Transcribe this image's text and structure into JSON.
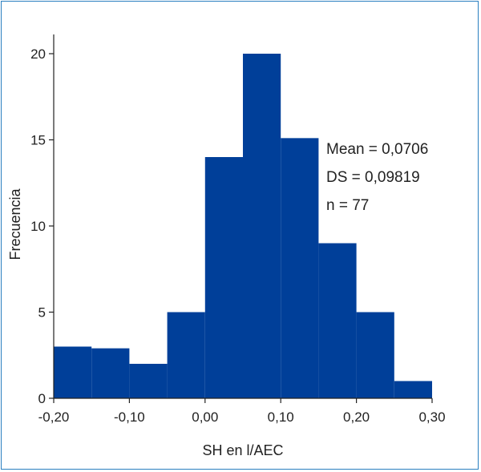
{
  "chart_data": {
    "type": "bar",
    "subtype": "histogram",
    "bin_edges": [
      -0.2,
      -0.15,
      -0.1,
      -0.05,
      0.0,
      0.05,
      0.1,
      0.15,
      0.2,
      0.25,
      0.3
    ],
    "values": [
      3,
      2.9,
      2,
      5,
      14,
      20,
      15.1,
      9,
      5,
      1
    ],
    "xlabel": "SH en l/AEC",
    "ylabel": "Frecuencia",
    "xlim": [
      -0.2,
      0.3
    ],
    "ylim": [
      0,
      20
    ],
    "x_ticks": [
      -0.2,
      -0.1,
      0.0,
      0.1,
      0.2,
      0.3
    ],
    "x_tick_labels": [
      "-0,20",
      "-0,10",
      "0,00",
      "0,10",
      "0,20",
      "0,30"
    ],
    "y_ticks": [
      0,
      5,
      10,
      15,
      20
    ],
    "y_tick_labels": [
      "0",
      "5",
      "10",
      "15",
      "20"
    ],
    "annotations": [
      "Mean = 0,0706",
      "DS = 0,09819",
      "n = 77"
    ],
    "bar_color": "#003f99",
    "border_color": "#2a7fc0",
    "grid": false
  }
}
